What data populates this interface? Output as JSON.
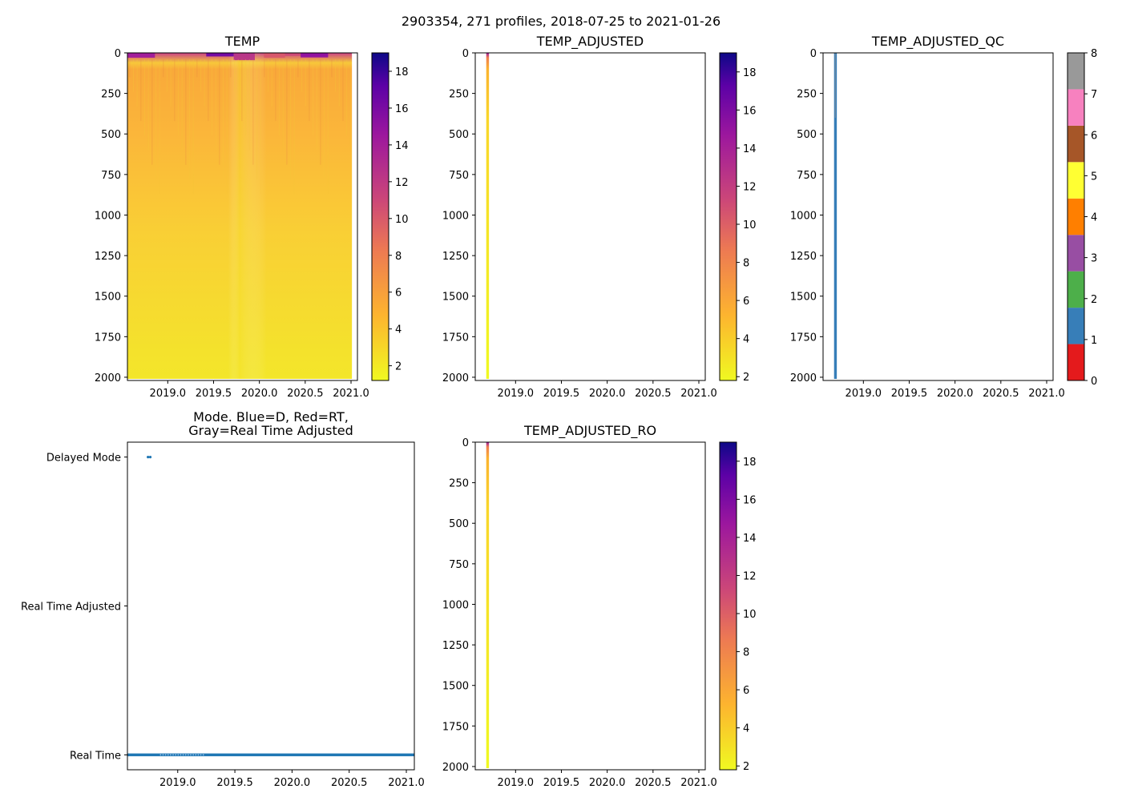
{
  "suptitle": "2903354, 271 profiles, 2018-07-25 to 2021-01-26",
  "chart_data": [
    {
      "type": "heatmap",
      "title": "TEMP",
      "x_ticks": [
        "2019.0",
        "2019.5",
        "2020.0",
        "2020.5",
        "2021.0"
      ],
      "x_tick_values": [
        2019.0,
        2019.5,
        2020.0,
        2020.5,
        2021.0
      ],
      "xlim": [
        2018.56,
        2021.07
      ],
      "y_ticks": [
        "0",
        "250",
        "500",
        "750",
        "1000",
        "1250",
        "1500",
        "1750",
        "2000"
      ],
      "y_tick_values": [
        0,
        250,
        500,
        750,
        1000,
        1250,
        1500,
        1750,
        2000
      ],
      "ylim": [
        2020,
        0
      ],
      "colorbar": {
        "colormap": "plasma_r",
        "range": [
          1.2,
          19
        ],
        "ticks": [
          "2",
          "4",
          "6",
          "8",
          "10",
          "12",
          "14",
          "16",
          "18"
        ],
        "tick_values": [
          2,
          4,
          6,
          8,
          10,
          12,
          14,
          16,
          18
        ]
      },
      "coverage": [
        2018.56,
        2021.01
      ]
    },
    {
      "type": "heatmap",
      "title": "TEMP_ADJUSTED",
      "x_ticks": [
        "2019.0",
        "2019.5",
        "2020.0",
        "2020.5",
        "2021.0"
      ],
      "x_tick_values": [
        2019.0,
        2019.5,
        2020.0,
        2020.5,
        2021.0
      ],
      "xlim": [
        2018.56,
        2021.07
      ],
      "y_ticks": [
        "0",
        "250",
        "500",
        "750",
        "1000",
        "1250",
        "1500",
        "1750",
        "2000"
      ],
      "y_tick_values": [
        0,
        250,
        500,
        750,
        1000,
        1250,
        1500,
        1750,
        2000
      ],
      "ylim": [
        2020,
        0
      ],
      "colorbar": {
        "colormap": "plasma_r",
        "range": [
          1.8,
          19
        ],
        "ticks": [
          "2",
          "4",
          "6",
          "8",
          "10",
          "12",
          "14",
          "16",
          "18"
        ],
        "tick_values": [
          2,
          4,
          6,
          8,
          10,
          12,
          14,
          16,
          18
        ]
      },
      "coverage": [
        2018.68,
        2018.71
      ]
    },
    {
      "type": "heatmap",
      "title": "TEMP_ADJUSTED_QC",
      "x_ticks": [
        "2019.0",
        "2019.5",
        "2020.0",
        "2020.5",
        "2021.0"
      ],
      "x_tick_values": [
        2019.0,
        2019.5,
        2020.0,
        2020.5,
        2021.0
      ],
      "xlim": [
        2018.56,
        2021.07
      ],
      "y_ticks": [
        "0",
        "250",
        "500",
        "750",
        "1000",
        "1250",
        "1500",
        "1750",
        "2000"
      ],
      "y_tick_values": [
        0,
        250,
        500,
        750,
        1000,
        1250,
        1500,
        1750,
        2000
      ],
      "ylim": [
        2020,
        0
      ],
      "colorbar": {
        "colormap": "qc_categorical",
        "range": [
          0,
          8
        ],
        "ticks": [
          "0",
          "1",
          "2",
          "3",
          "4",
          "5",
          "6",
          "7",
          "8"
        ],
        "tick_values": [
          0,
          1,
          2,
          3,
          4,
          5,
          6,
          7,
          8
        ],
        "colors": [
          "#e41a1c",
          "#377eb8",
          "#4daf4a",
          "#984ea3",
          "#ff7f00",
          "#ffff33",
          "#a65628",
          "#f781bf",
          "#999999"
        ]
      },
      "coverage": [
        2018.68,
        2018.71
      ],
      "dominant_qc": 1
    },
    {
      "type": "scatter",
      "title": "Mode. Blue=D, Red=RT,\nGray=Real Time Adjusted",
      "x_ticks": [
        "2019.0",
        "2019.5",
        "2020.0",
        "2020.5",
        "2021.0"
      ],
      "x_tick_values": [
        2019.0,
        2019.5,
        2020.0,
        2020.5,
        2021.0
      ],
      "xlim": [
        2018.56,
        2021.07
      ],
      "y_ticks": [
        "Delayed Mode",
        "Real Time Adjusted",
        "Real Time"
      ],
      "y_tick_values": [
        2,
        1,
        0
      ],
      "ylim": [
        -0.1,
        2.1
      ],
      "series": [
        {
          "name": "Delayed Mode",
          "x": [
            2018.74,
            2018.76
          ],
          "y": [
            2,
            2
          ],
          "color": "#1f77b4"
        },
        {
          "name": "Real Time",
          "x_range": [
            2018.56,
            2021.07
          ],
          "y": 0,
          "color": "#1f77b4"
        }
      ]
    },
    {
      "type": "heatmap",
      "title": "TEMP_ADJUSTED_RO",
      "x_ticks": [
        "2019.0",
        "2019.5",
        "2020.0",
        "2020.5",
        "2021.0"
      ],
      "x_tick_values": [
        2019.0,
        2019.5,
        2020.0,
        2020.5,
        2021.0
      ],
      "xlim": [
        2018.56,
        2021.07
      ],
      "y_ticks": [
        "0",
        "250",
        "500",
        "750",
        "1000",
        "1250",
        "1500",
        "1750",
        "2000"
      ],
      "y_tick_values": [
        0,
        250,
        500,
        750,
        1000,
        1250,
        1500,
        1750,
        2000
      ],
      "ylim": [
        2020,
        0
      ],
      "colorbar": {
        "colormap": "plasma_r",
        "range": [
          1.8,
          19
        ],
        "ticks": [
          "2",
          "4",
          "6",
          "8",
          "10",
          "12",
          "14",
          "16",
          "18"
        ],
        "tick_values": [
          2,
          4,
          6,
          8,
          10,
          12,
          14,
          16,
          18
        ]
      },
      "coverage": [
        2018.68,
        2018.71
      ]
    }
  ]
}
